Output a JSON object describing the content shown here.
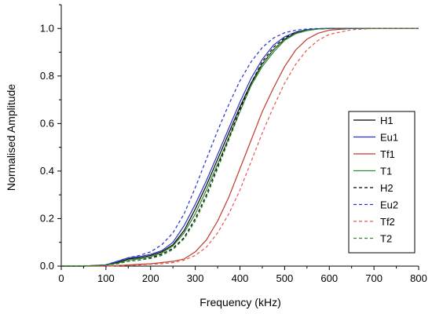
{
  "chart_data": {
    "type": "line",
    "title": "",
    "xlabel": "Frequency (kHz)",
    "ylabel": "Normalised Amplitude",
    "xlim": [
      0,
      800
    ],
    "ylim": [
      -0.0,
      1.1
    ],
    "xticks": [
      0,
      100,
      200,
      300,
      400,
      500,
      600,
      700,
      800
    ],
    "yticks": [
      0.0,
      0.2,
      0.4,
      0.6,
      0.8,
      1.0
    ],
    "ytick_labels": [
      "0.0",
      "0.2",
      "0.4",
      "0.6",
      "0.8",
      "1.0"
    ],
    "grid": false,
    "legend_position": "right",
    "x": [
      0,
      50,
      100,
      125,
      150,
      175,
      200,
      225,
      250,
      275,
      300,
      325,
      350,
      375,
      400,
      425,
      450,
      475,
      500,
      525,
      550,
      575,
      600,
      650,
      700,
      750,
      800
    ],
    "series": [
      {
        "name": "H1",
        "color": "#000000",
        "dash": "solid",
        "values": [
          0,
          0,
          0.005,
          0.015,
          0.03,
          0.035,
          0.045,
          0.06,
          0.09,
          0.15,
          0.24,
          0.34,
          0.45,
          0.56,
          0.67,
          0.77,
          0.85,
          0.91,
          0.955,
          0.98,
          0.992,
          0.998,
          1.0,
          1.0,
          1.0,
          1.0,
          1.0
        ]
      },
      {
        "name": "Eu1",
        "color": "#2433c8",
        "dash": "solid",
        "values": [
          0,
          0,
          0.005,
          0.02,
          0.035,
          0.04,
          0.05,
          0.065,
          0.1,
          0.17,
          0.26,
          0.36,
          0.47,
          0.58,
          0.69,
          0.79,
          0.87,
          0.93,
          0.965,
          0.985,
          0.995,
          0.999,
          1.0,
          1.0,
          1.0,
          1.0,
          1.0
        ]
      },
      {
        "name": "Tf1",
        "color": "#c0392b",
        "dash": "solid",
        "values": [
          0,
          0,
          0,
          0.002,
          0.005,
          0.008,
          0.01,
          0.015,
          0.02,
          0.03,
          0.06,
          0.11,
          0.19,
          0.29,
          0.41,
          0.53,
          0.65,
          0.75,
          0.84,
          0.91,
          0.955,
          0.98,
          0.993,
          1.0,
          1.0,
          1.0,
          1.0
        ]
      },
      {
        "name": "T1",
        "color": "#2e8b2e",
        "dash": "solid",
        "values": [
          0,
          0,
          0.004,
          0.012,
          0.025,
          0.03,
          0.04,
          0.055,
          0.085,
          0.14,
          0.22,
          0.32,
          0.43,
          0.54,
          0.65,
          0.76,
          0.84,
          0.9,
          0.95,
          0.978,
          0.991,
          0.998,
          1.0,
          1.0,
          1.0,
          1.0,
          1.0
        ]
      },
      {
        "name": "H2",
        "color": "#000000",
        "dash": "dashed",
        "values": [
          0,
          0,
          0.004,
          0.01,
          0.02,
          0.025,
          0.035,
          0.05,
          0.075,
          0.12,
          0.2,
          0.3,
          0.42,
          0.54,
          0.66,
          0.77,
          0.86,
          0.92,
          0.96,
          0.983,
          0.994,
          0.999,
          1.0,
          1.0,
          1.0,
          1.0,
          1.0
        ]
      },
      {
        "name": "Eu2",
        "color": "#2433c8",
        "dash": "dashed",
        "values": [
          0,
          0,
          0.006,
          0.02,
          0.035,
          0.045,
          0.06,
          0.09,
          0.14,
          0.22,
          0.33,
          0.45,
          0.57,
          0.68,
          0.78,
          0.86,
          0.92,
          0.96,
          0.982,
          0.993,
          0.998,
          1.0,
          1.0,
          1.0,
          1.0,
          1.0,
          1.0
        ]
      },
      {
        "name": "Tf2",
        "color": "#e05a4f",
        "dash": "dashed",
        "values": [
          0,
          0,
          0,
          0.001,
          0.003,
          0.005,
          0.008,
          0.01,
          0.015,
          0.025,
          0.045,
          0.08,
          0.14,
          0.22,
          0.32,
          0.44,
          0.56,
          0.67,
          0.77,
          0.85,
          0.91,
          0.95,
          0.975,
          0.995,
          1.0,
          1.0,
          1.0
        ]
      },
      {
        "name": "T2",
        "color": "#2e8b2e",
        "dash": "dashed",
        "values": [
          0,
          0,
          0.004,
          0.01,
          0.02,
          0.025,
          0.032,
          0.045,
          0.07,
          0.115,
          0.19,
          0.29,
          0.41,
          0.53,
          0.65,
          0.76,
          0.85,
          0.91,
          0.955,
          0.98,
          0.993,
          0.998,
          1.0,
          1.0,
          1.0,
          1.0,
          1.0
        ]
      }
    ]
  }
}
